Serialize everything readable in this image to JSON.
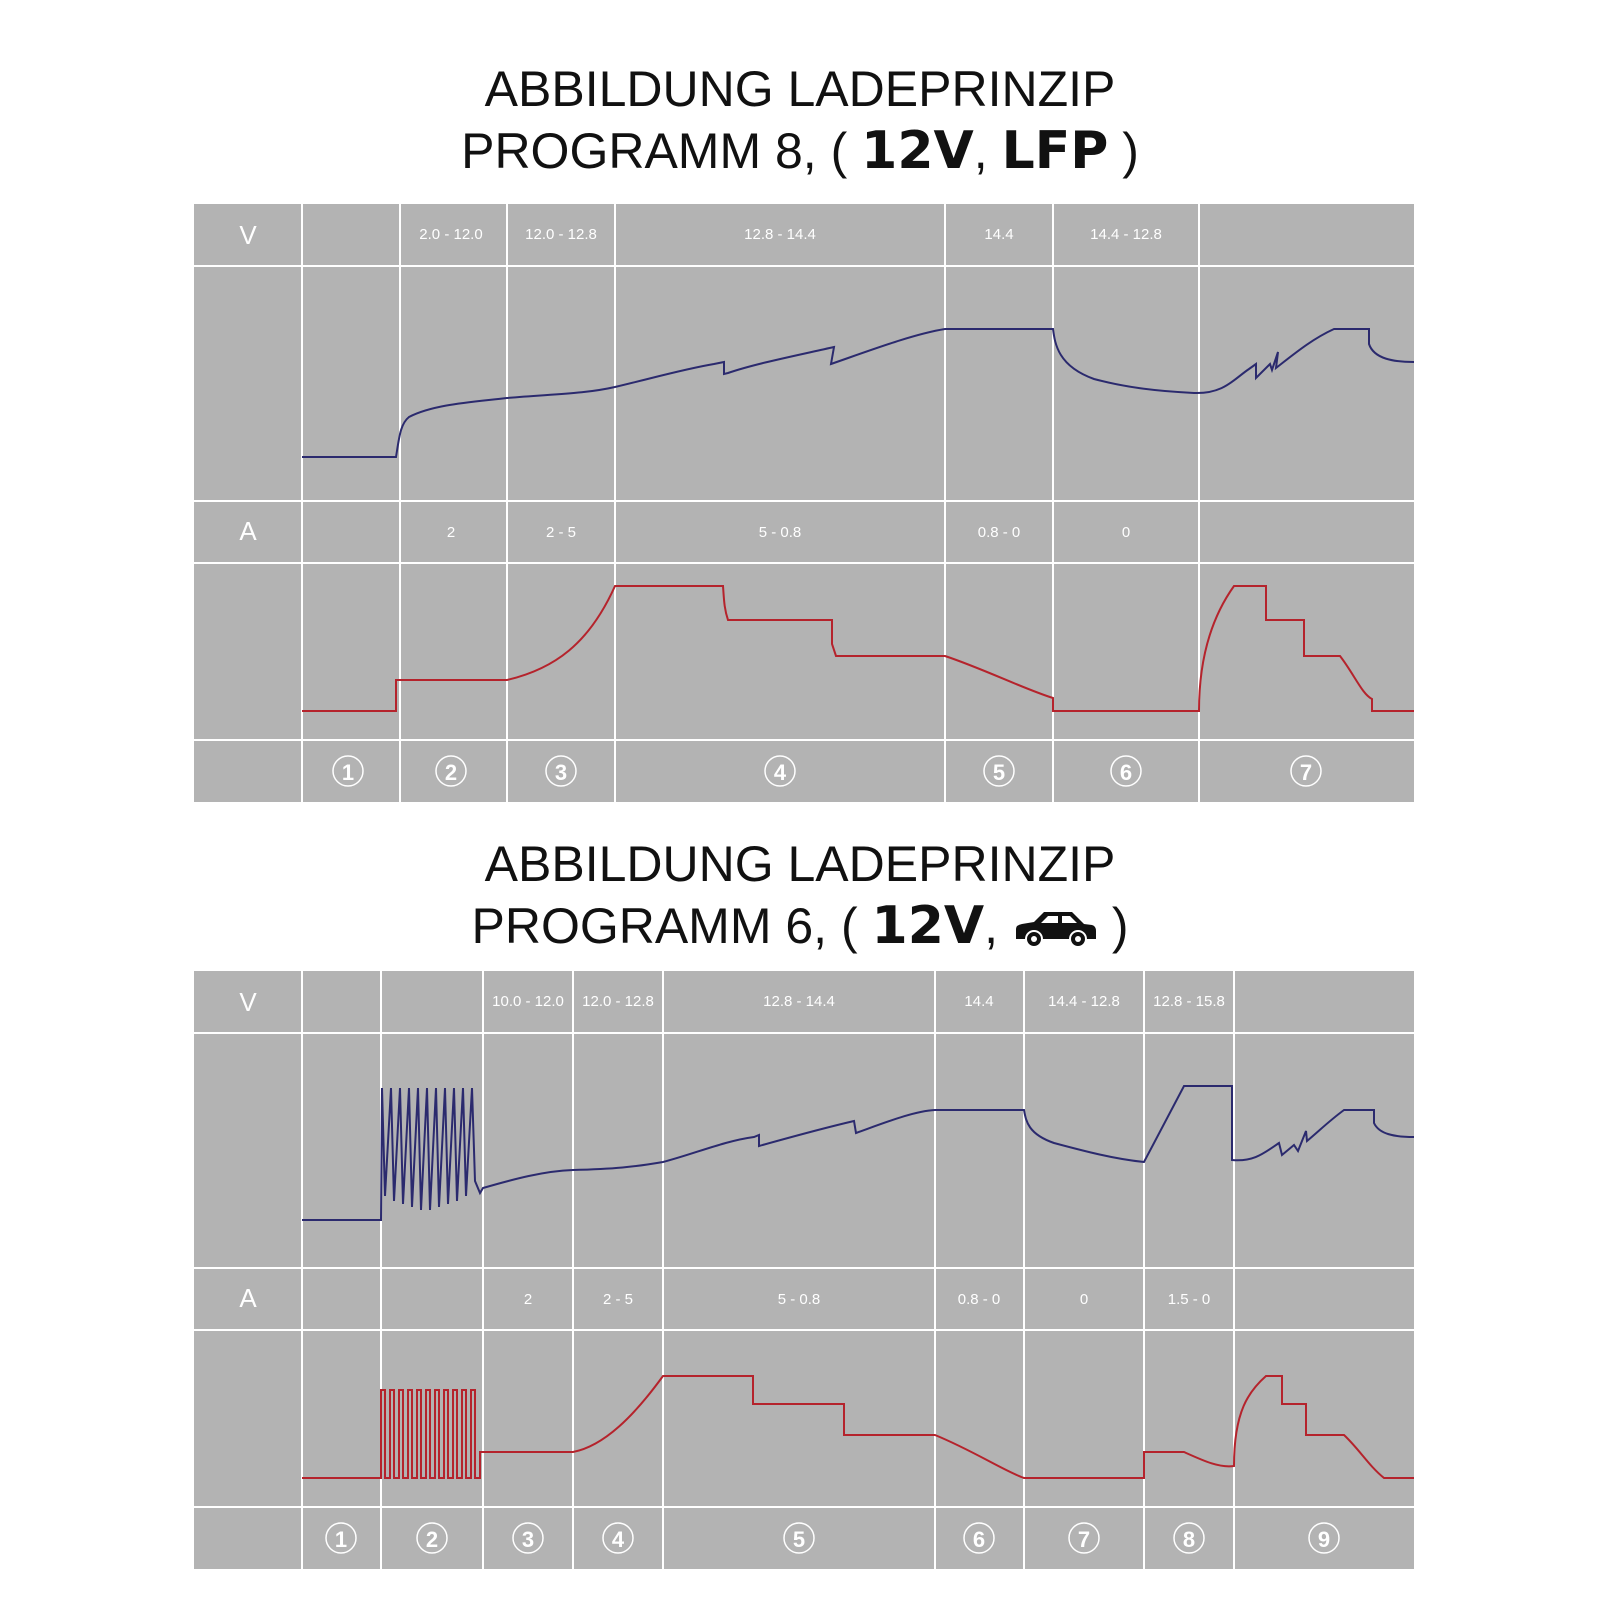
{
  "colors": {
    "background": "#b3b3b3",
    "grid": "#ffffff",
    "voltage_curve": "#2b2a6e",
    "current_curve": "#b5232c",
    "title": "#111111"
  },
  "diagrams": [
    {
      "title_line1": "ABBILDUNG LADEPRINZIP",
      "title_line2_prefix": "PROGRAMM 8, (",
      "title_voltage": "12V",
      "title_sep": ",",
      "title_mode": "LFP",
      "title_mode_icon": "",
      "title_suffix": ")",
      "v_label": "V",
      "a_label": "A",
      "voltage_ranges": [
        "",
        "2.0 - 12.0",
        "12.0 - 12.8",
        "12.8 - 14.4",
        "14.4",
        "14.4 - 12.8",
        ""
      ],
      "current_ranges": [
        "",
        "2",
        "2 - 5",
        "5 - 0.8",
        "0.8 - 0",
        "0",
        ""
      ],
      "steps": [
        "1",
        "2",
        "3",
        "4",
        "5",
        "6",
        "7"
      ]
    },
    {
      "title_line1": "ABBILDUNG LADEPRINZIP",
      "title_line2_prefix": "PROGRAMM 6, (",
      "title_voltage": "12V",
      "title_sep": ",",
      "title_mode": "",
      "title_mode_icon": "car-icon",
      "title_suffix": ")",
      "v_label": "V",
      "a_label": "A",
      "voltage_ranges": [
        "",
        "",
        "10.0 - 12.0",
        "12.0 - 12.8",
        "12.8 - 14.4",
        "14.4",
        "14.4 - 12.8",
        "12.8 - 15.8",
        ""
      ],
      "current_ranges": [
        "",
        "",
        "2",
        "2 - 5",
        "5 - 0.8",
        "0.8 - 0",
        "0",
        "1.5 - 0",
        ""
      ],
      "steps": [
        "1",
        "2",
        "3",
        "4",
        "5",
        "6",
        "7",
        "8",
        "9"
      ]
    }
  ]
}
